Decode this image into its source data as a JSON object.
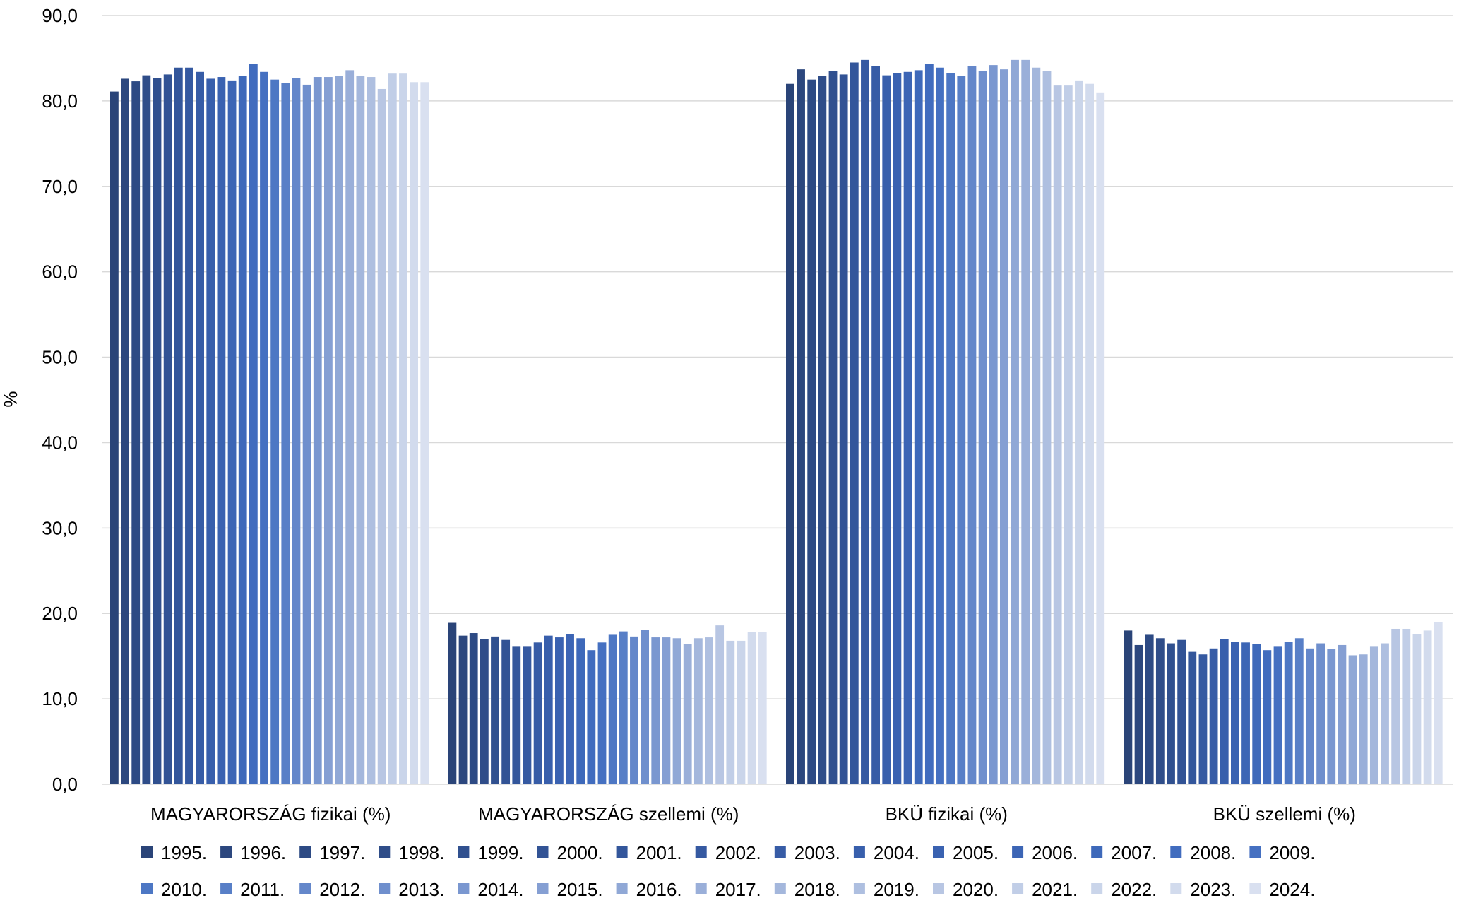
{
  "chart_data": {
    "type": "bar",
    "title": "",
    "xlabel": "",
    "ylabel": "%",
    "ylim": [
      0,
      90
    ],
    "y_ticks": [
      "0,0",
      "10,0",
      "20,0",
      "30,0",
      "40,0",
      "50,0",
      "60,0",
      "70,0",
      "80,0",
      "90,0"
    ],
    "grid": "horizontal",
    "legend_position": "bottom",
    "categories": [
      "MAGYARORSZÁG fizikai (%)",
      "MAGYARORSZÁG szellemi (%)",
      "BKÜ fizikai (%)",
      "BKÜ szellemi (%)"
    ],
    "series": [
      {
        "name": "1995.",
        "color": "#2a4478",
        "values": [
          81.1,
          18.9,
          82.0,
          18.0
        ]
      },
      {
        "name": "1996.",
        "color": "#2c477e",
        "values": [
          82.6,
          17.4,
          83.7,
          16.3
        ]
      },
      {
        "name": "1997.",
        "color": "#2d4a84",
        "values": [
          82.3,
          17.7,
          82.5,
          17.5
        ]
      },
      {
        "name": "1998.",
        "color": "#2f4d89",
        "values": [
          83.0,
          17.0,
          82.9,
          17.1
        ]
      },
      {
        "name": "1999.",
        "color": "#30508f",
        "values": [
          82.7,
          17.3,
          83.5,
          16.5
        ]
      },
      {
        "name": "2000.",
        "color": "#325395",
        "values": [
          83.1,
          16.9,
          83.1,
          16.9
        ]
      },
      {
        "name": "2001.",
        "color": "#33569b",
        "values": [
          83.9,
          16.1,
          84.5,
          15.5
        ]
      },
      {
        "name": "2002.",
        "color": "#3559a1",
        "values": [
          83.9,
          16.1,
          84.8,
          15.2
        ]
      },
      {
        "name": "2003.",
        "color": "#375ca6",
        "values": [
          83.4,
          16.6,
          84.1,
          15.9
        ]
      },
      {
        "name": "2004.",
        "color": "#385fac",
        "values": [
          82.6,
          17.4,
          83.0,
          17.0
        ]
      },
      {
        "name": "2005.",
        "color": "#3a62b1",
        "values": [
          82.8,
          17.2,
          83.3,
          16.7
        ]
      },
      {
        "name": "2006.",
        "color": "#3c65b5",
        "values": [
          82.4,
          17.6,
          83.4,
          16.6
        ]
      },
      {
        "name": "2007.",
        "color": "#3e69ba",
        "values": [
          82.9,
          17.1,
          83.6,
          16.4
        ]
      },
      {
        "name": "2008.",
        "color": "#416cbe",
        "values": [
          84.3,
          15.7,
          84.3,
          15.7
        ]
      },
      {
        "name": "2009.",
        "color": "#4570c1",
        "values": [
          83.4,
          16.6,
          83.9,
          16.1
        ]
      },
      {
        "name": "2010.",
        "color": "#4d77c4",
        "values": [
          82.5,
          17.5,
          83.3,
          16.7
        ]
      },
      {
        "name": "2011.",
        "color": "#587fc7",
        "values": [
          82.1,
          17.9,
          82.9,
          17.1
        ]
      },
      {
        "name": "2012.",
        "color": "#6487ca",
        "values": [
          82.7,
          17.3,
          84.1,
          15.9
        ]
      },
      {
        "name": "2013.",
        "color": "#6f8fcd",
        "values": [
          81.9,
          18.1,
          83.5,
          16.5
        ]
      },
      {
        "name": "2014.",
        "color": "#7a97d0",
        "values": [
          82.8,
          17.2,
          84.2,
          15.8
        ]
      },
      {
        "name": "2015.",
        "color": "#859fd3",
        "values": [
          82.8,
          17.2,
          83.7,
          16.3
        ]
      },
      {
        "name": "2016.",
        "color": "#90a8d6",
        "values": [
          82.9,
          17.1,
          84.8,
          15.1
        ]
      },
      {
        "name": "2017.",
        "color": "#9aafd9",
        "values": [
          83.6,
          16.4,
          84.8,
          15.2
        ]
      },
      {
        "name": "2018.",
        "color": "#a4b7dc",
        "values": [
          82.9,
          17.1,
          83.9,
          16.1
        ]
      },
      {
        "name": "2019.",
        "color": "#aebfe0",
        "values": [
          82.8,
          17.2,
          83.5,
          16.5
        ]
      },
      {
        "name": "2020.",
        "color": "#b8c6e3",
        "values": [
          81.4,
          18.6,
          81.8,
          18.2
        ]
      },
      {
        "name": "2021.",
        "color": "#c1cee7",
        "values": [
          83.2,
          16.8,
          81.8,
          18.2
        ]
      },
      {
        "name": "2022.",
        "color": "#cad5ea",
        "values": [
          83.2,
          16.8,
          82.4,
          17.6
        ]
      },
      {
        "name": "2023.",
        "color": "#d2dbed",
        "values": [
          82.2,
          17.8,
          82.0,
          18.0
        ]
      },
      {
        "name": "2024.",
        "color": "#d9e0f0",
        "values": [
          82.2,
          17.8,
          81.0,
          19.0
        ]
      }
    ]
  }
}
